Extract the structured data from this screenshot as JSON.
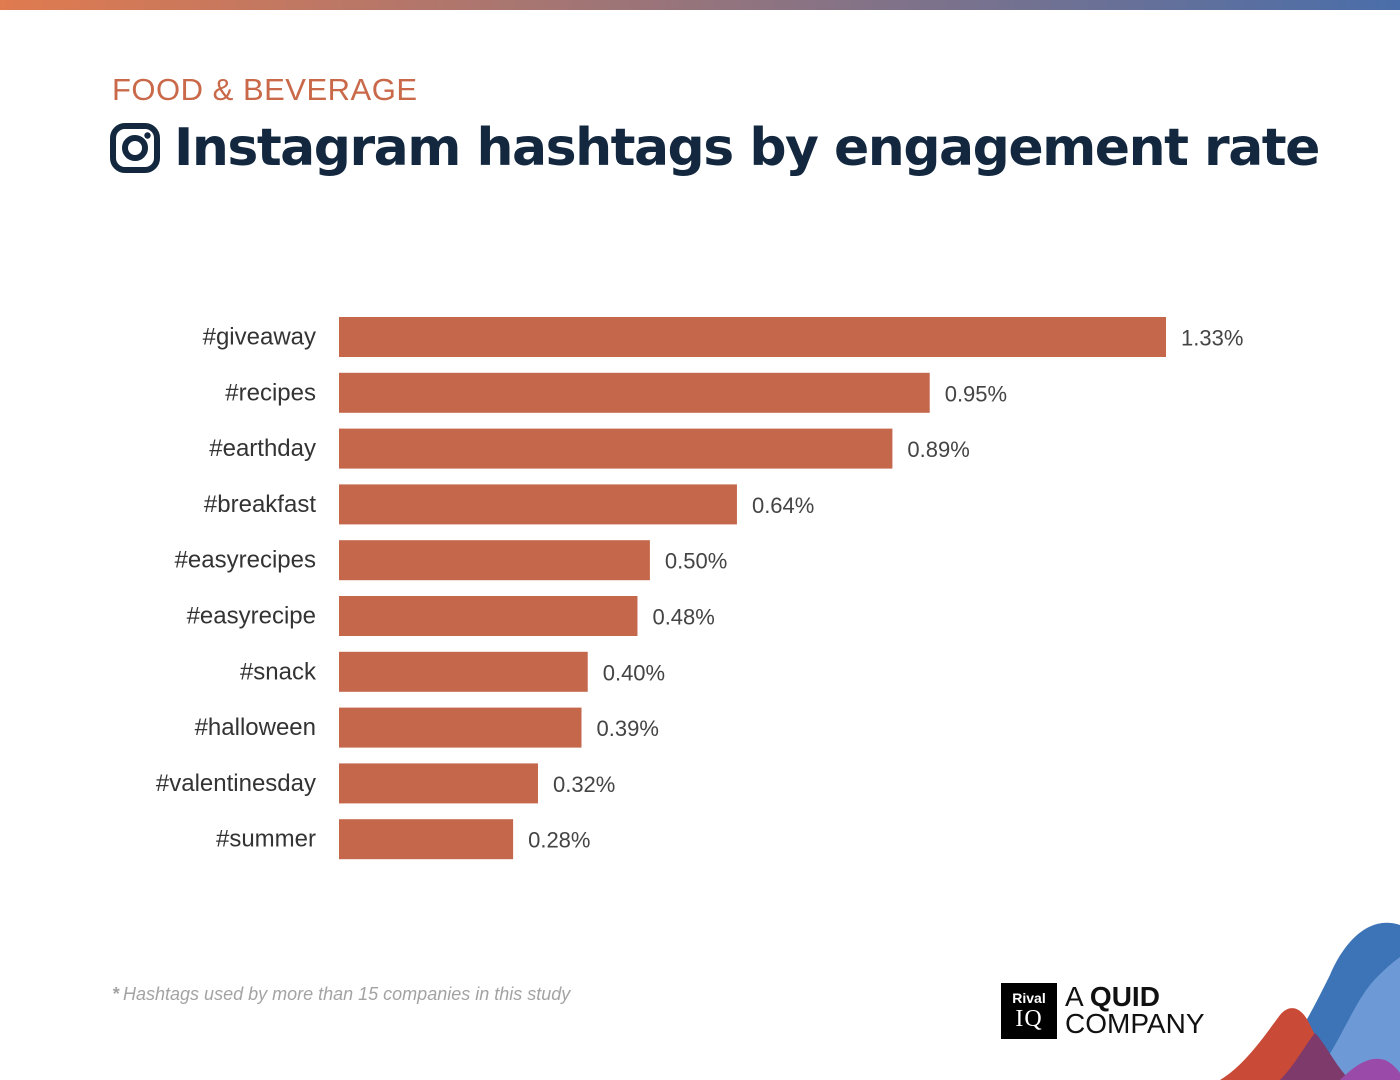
{
  "header": {
    "category": "FOOD & BEVERAGE",
    "title": "Instagram hashtags by engagement rate"
  },
  "colors": {
    "category": "#c9694a",
    "title": "#13283f",
    "bar": "#c5674a",
    "label": "#333333",
    "value": "#444444",
    "top_bar_start": "#e07a4f",
    "top_bar_end": "#4a6eaa"
  },
  "icons": {
    "brand": "instagram-icon"
  },
  "chart_data": {
    "type": "bar",
    "orientation": "horizontal",
    "categories": [
      "#giveaway",
      "#recipes",
      "#earthday",
      "#breakfast",
      "#easyrecipes",
      "#easyrecipe",
      "#snack",
      "#halloween",
      "#valentinesday",
      "#summer"
    ],
    "values": [
      1.33,
      0.95,
      0.89,
      0.64,
      0.5,
      0.48,
      0.4,
      0.39,
      0.32,
      0.28
    ],
    "value_labels": [
      "1.33%",
      "0.95%",
      "0.89%",
      "0.64%",
      "0.50%",
      "0.48%",
      "0.40%",
      "0.39%",
      "0.32%",
      "0.28%"
    ],
    "xlim": [
      0,
      1.33
    ],
    "grid": false,
    "legend": "none",
    "title": "Instagram hashtags by engagement rate",
    "xlabel": "",
    "ylabel": ""
  },
  "footnote": {
    "star": "*",
    "text": "Hashtags used by more than 15 companies in this study"
  },
  "logo": {
    "box_top": "Rival",
    "box_bottom": "IQ",
    "line1_prefix": "A ",
    "line1_bold": "QUID",
    "line2": "COMPANY"
  }
}
